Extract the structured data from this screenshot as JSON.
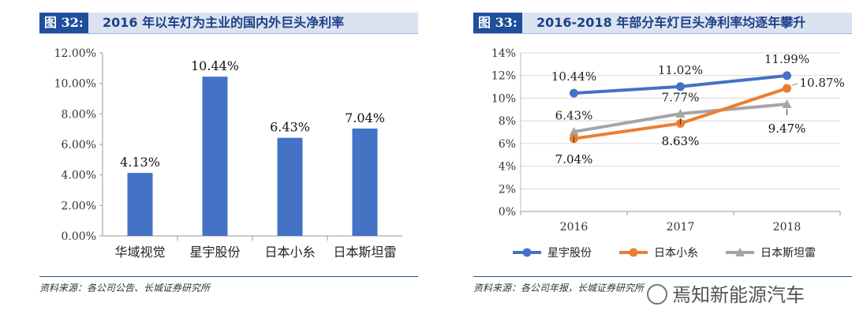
{
  "left": {
    "badge": "图 32:",
    "title": "2016 年以车灯为主业的国内外巨头净利率",
    "source": "资料来源：各公司公告、长城证券研究所"
  },
  "right": {
    "badge": "图 33:",
    "title": "2016-2018 年部分车灯巨头净利率均逐年攀升",
    "source": "资料来源：各公司年报，长城证券研究所"
  },
  "watermark": "焉知新能源汽车",
  "chart_data": [
    {
      "type": "bar",
      "title": "",
      "categories": [
        "华域视觉",
        "星宇股份",
        "日本小糸",
        "日本斯坦雷"
      ],
      "values": [
        4.13,
        10.44,
        6.43,
        7.04
      ],
      "data_labels": [
        "4.13%",
        "10.44%",
        "6.43%",
        "7.04%"
      ],
      "y_ticks": [
        "0.00%",
        "2.00%",
        "4.00%",
        "6.00%",
        "8.00%",
        "10.00%",
        "12.00%"
      ],
      "ylim": [
        0,
        12
      ],
      "color": "#4472c4",
      "grid": false
    },
    {
      "type": "line",
      "title": "",
      "x": [
        "2016",
        "2017",
        "2018"
      ],
      "y_ticks": [
        "0%",
        "2%",
        "4%",
        "6%",
        "8%",
        "10%",
        "12%",
        "14%"
      ],
      "ylim": [
        0,
        14
      ],
      "grid": true,
      "legend_position": "bottom",
      "series": [
        {
          "name": "星宇股份",
          "values": [
            10.44,
            11.02,
            11.99
          ],
          "labels": [
            "10.44%",
            "11.02%",
            "11.99%"
          ],
          "color": "#4472c4",
          "marker": "circle"
        },
        {
          "name": "日本小糸",
          "values": [
            6.43,
            7.77,
            10.87
          ],
          "labels": [
            "6.43%",
            "7.77%",
            "10.87%"
          ],
          "color": "#ed7d31",
          "marker": "circle"
        },
        {
          "name": "日本斯坦雷",
          "values": [
            7.04,
            8.63,
            9.47
          ],
          "labels": [
            "7.04%",
            "8.63%",
            "9.47%"
          ],
          "color": "#a5a5a5",
          "marker": "triangle"
        }
      ]
    }
  ]
}
